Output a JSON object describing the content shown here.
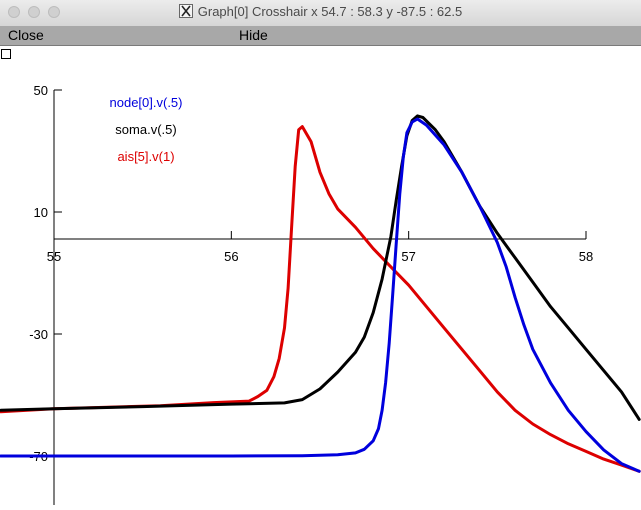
{
  "window": {
    "title": "Graph[0] Crosshair x 54.7 : 58.3  y -87.5 : 62.5",
    "icon": "x11-icon"
  },
  "menu": {
    "close_label": "Close",
    "hide_label": "Hide"
  },
  "chart_data": {
    "type": "line",
    "title": "",
    "xlabel": "",
    "ylabel": "",
    "xlim": [
      54.7,
      58.3
    ],
    "ylim": [
      -87.5,
      62.5
    ],
    "x_ticks": [
      55,
      56,
      57,
      58
    ],
    "x_tick_labels": [
      "55",
      "56",
      "57",
      "58"
    ],
    "y_ticks": [
      50,
      10,
      -30,
      -70
    ],
    "y_tick_labels": [
      "50",
      "10",
      "-30",
      "-70"
    ],
    "grid": false,
    "legend_position": "top-left",
    "series": [
      {
        "name": "node[0].v(.5)",
        "color": "#0000dd",
        "points": [
          [
            54.7,
            -70.0
          ],
          [
            55.0,
            -70.0
          ],
          [
            55.5,
            -70.0
          ],
          [
            56.0,
            -70.0
          ],
          [
            56.4,
            -69.9
          ],
          [
            56.6,
            -69.6
          ],
          [
            56.7,
            -69.0
          ],
          [
            56.75,
            -67.8
          ],
          [
            56.8,
            -65.0
          ],
          [
            56.83,
            -61.0
          ],
          [
            56.85,
            -55.0
          ],
          [
            56.87,
            -46.0
          ],
          [
            56.89,
            -33.0
          ],
          [
            56.91,
            -17.0
          ],
          [
            56.93,
            0.0
          ],
          [
            56.95,
            16.0
          ],
          [
            56.97,
            28.0
          ],
          [
            56.99,
            36.0
          ],
          [
            57.02,
            39.5
          ],
          [
            57.05,
            40.5
          ],
          [
            57.1,
            38.5
          ],
          [
            57.2,
            32.0
          ],
          [
            57.3,
            23.0
          ],
          [
            57.4,
            12.0
          ],
          [
            57.5,
            0.0
          ],
          [
            57.55,
            -8.0
          ],
          [
            57.6,
            -18.0
          ],
          [
            57.65,
            -27.0
          ],
          [
            57.7,
            -35.0
          ],
          [
            57.8,
            -46.0
          ],
          [
            57.9,
            -55.0
          ],
          [
            58.0,
            -62.0
          ],
          [
            58.1,
            -68.0
          ],
          [
            58.2,
            -72.5
          ],
          [
            58.3,
            -75.0
          ]
        ]
      },
      {
        "name": "soma.v(.5)",
        "color": "#000000",
        "points": [
          [
            54.7,
            -55.0
          ],
          [
            55.0,
            -54.5
          ],
          [
            55.5,
            -53.8
          ],
          [
            56.0,
            -53.0
          ],
          [
            56.3,
            -52.6
          ],
          [
            56.4,
            -51.5
          ],
          [
            56.5,
            -48.0
          ],
          [
            56.6,
            -42.5
          ],
          [
            56.7,
            -36.0
          ],
          [
            56.75,
            -31.0
          ],
          [
            56.8,
            -23.0
          ],
          [
            56.85,
            -12.0
          ],
          [
            56.9,
            2.0
          ],
          [
            56.93,
            14.0
          ],
          [
            56.96,
            25.0
          ],
          [
            56.99,
            35.0
          ],
          [
            57.02,
            40.0
          ],
          [
            57.05,
            41.5
          ],
          [
            57.08,
            41.0
          ],
          [
            57.15,
            37.0
          ],
          [
            57.2,
            33.0
          ],
          [
            57.3,
            23.0
          ],
          [
            57.4,
            12.0
          ],
          [
            57.5,
            3.0
          ],
          [
            57.6,
            -5.0
          ],
          [
            57.7,
            -13.0
          ],
          [
            57.8,
            -21.0
          ],
          [
            57.9,
            -28.0
          ],
          [
            58.0,
            -35.0
          ],
          [
            58.1,
            -42.0
          ],
          [
            58.2,
            -49.0
          ],
          [
            58.3,
            -58.0
          ]
        ]
      },
      {
        "name": "ais[5].v(1)",
        "color": "#dd0000",
        "points": [
          [
            54.7,
            -55.5
          ],
          [
            55.0,
            -54.5
          ],
          [
            55.3,
            -54.0
          ],
          [
            55.6,
            -53.5
          ],
          [
            55.9,
            -52.5
          ],
          [
            56.1,
            -52.0
          ],
          [
            56.15,
            -50.5
          ],
          [
            56.2,
            -48.5
          ],
          [
            56.24,
            -44.0
          ],
          [
            56.27,
            -38.0
          ],
          [
            56.3,
            -28.0
          ],
          [
            56.32,
            -15.0
          ],
          [
            56.34,
            5.0
          ],
          [
            56.36,
            25.0
          ],
          [
            56.38,
            37.0
          ],
          [
            56.4,
            38.0
          ],
          [
            56.45,
            33.0
          ],
          [
            56.5,
            23.0
          ],
          [
            56.55,
            16.0
          ],
          [
            56.6,
            11.0
          ],
          [
            56.7,
            5.0
          ],
          [
            56.8,
            -2.0
          ],
          [
            56.9,
            -8.0
          ],
          [
            57.0,
            -14.0
          ],
          [
            57.1,
            -21.0
          ],
          [
            57.2,
            -28.0
          ],
          [
            57.3,
            -35.0
          ],
          [
            57.4,
            -42.0
          ],
          [
            57.5,
            -49.0
          ],
          [
            57.6,
            -55.0
          ],
          [
            57.7,
            -59.5
          ],
          [
            57.8,
            -63.0
          ],
          [
            57.9,
            -66.0
          ],
          [
            58.0,
            -68.5
          ],
          [
            58.1,
            -71.0
          ],
          [
            58.2,
            -73.0
          ],
          [
            58.3,
            -75.0
          ]
        ]
      }
    ]
  }
}
